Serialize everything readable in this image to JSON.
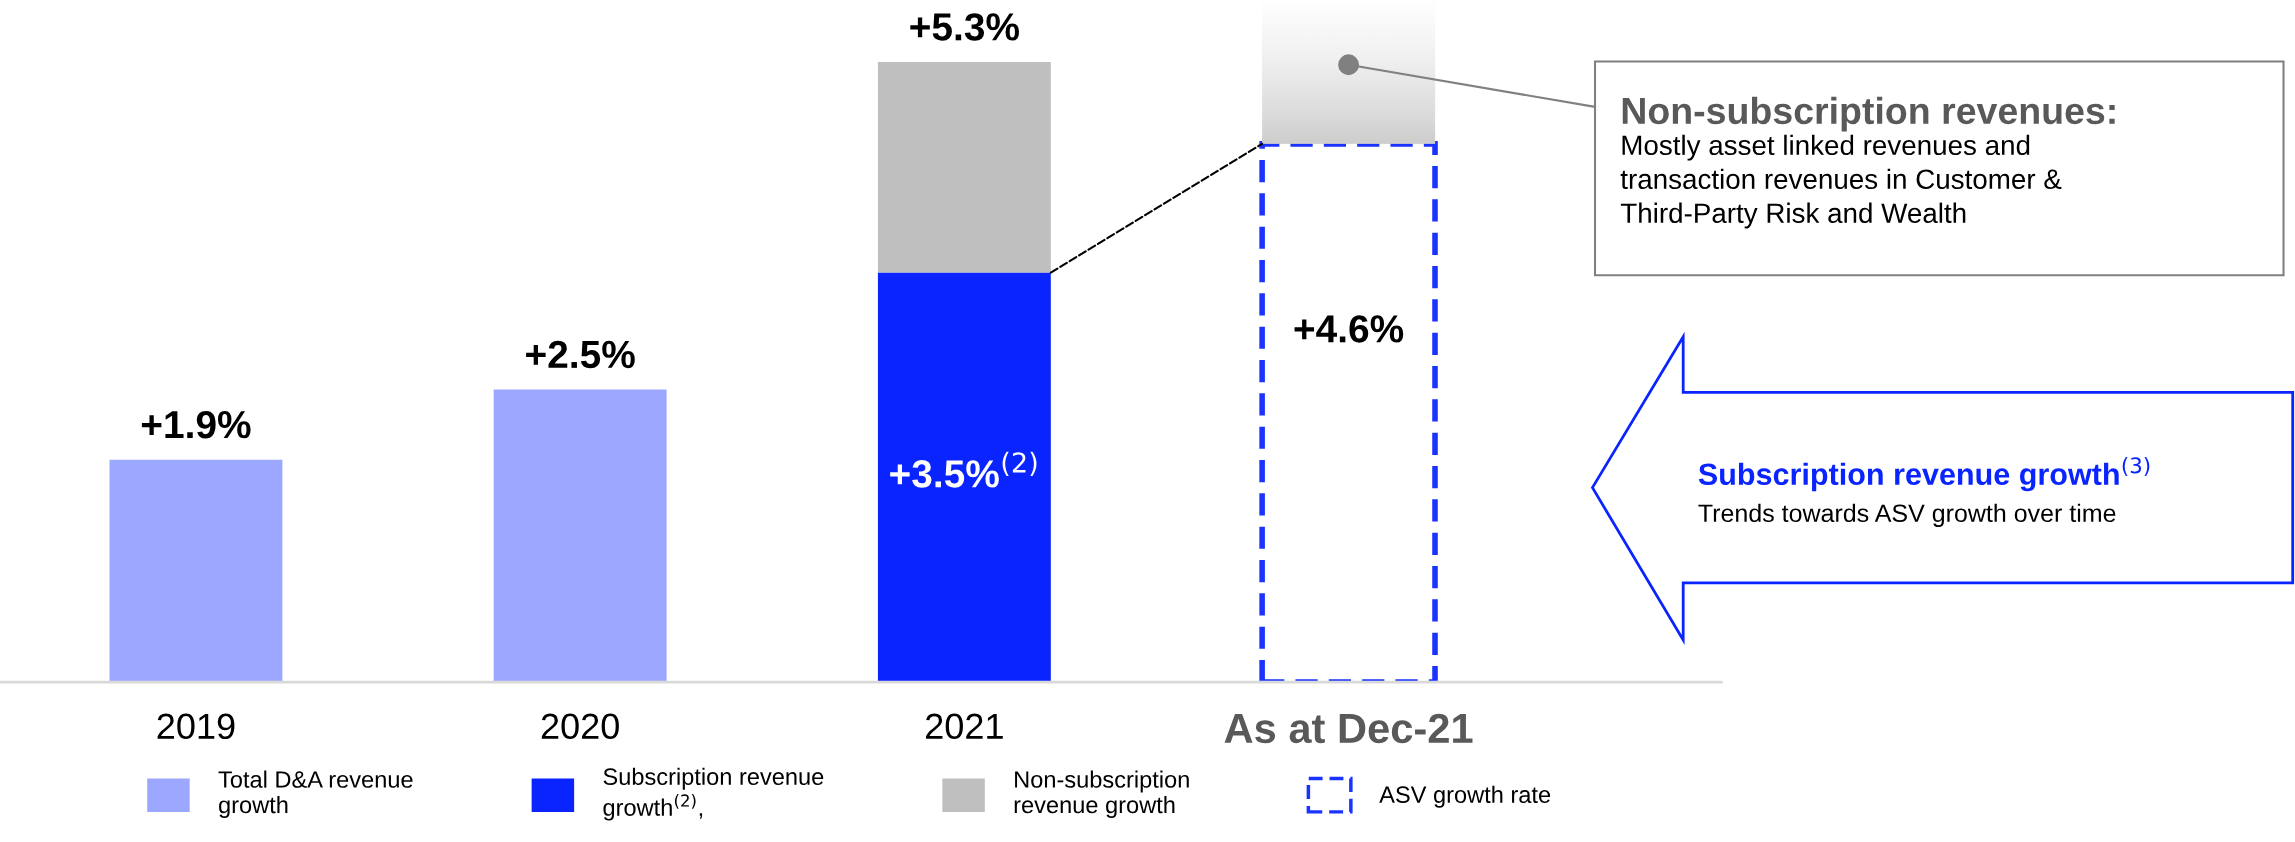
{
  "chart_data": {
    "type": "bar",
    "stacked": true,
    "categories": [
      "2019",
      "2020",
      "2021",
      "As at Dec-21"
    ],
    "series": [
      {
        "name": "Total D&A revenue\ngrowth",
        "color": "#9ca7ff",
        "values": [
          1.9,
          2.5,
          null,
          null
        ],
        "value_labels": [
          "+1.9%",
          "+2.5%",
          null,
          null
        ]
      },
      {
        "name": "Subscription revenue\ngrowth$^{(2)}$,",
        "color": "#0a24ff",
        "values": [
          null,
          null,
          3.5,
          null
        ],
        "value_labels": [
          null,
          null,
          "+3.5%$^{(2)}$",
          null
        ]
      },
      {
        "name": "Non-subscription\nrevenue growth",
        "color": "#bfbfbf",
        "values": [
          null,
          null,
          1.8,
          null
        ]
      },
      {
        "name": "ASV growth rate",
        "color": "#1a33ff",
        "line_style": "dashed",
        "values": [
          null,
          null,
          null,
          4.6
        ],
        "value_labels": [
          null,
          null,
          null,
          "+4.6%"
        ]
      }
    ],
    "totals": [
      null,
      null,
      "+5.3%",
      null
    ],
    "annotations": [
      "Non-subscription revenues:",
      "Mostly asset linked revenues and\ntransaction revenues in Customer &\nThird-Party Risk and Wealth",
      "Subscription revenue growth$^{(3)}$",
      "Trends towards ASV growth over time"
    ],
    "legend": "bottom",
    "tick_labels": "x",
    "grid": false
  }
}
